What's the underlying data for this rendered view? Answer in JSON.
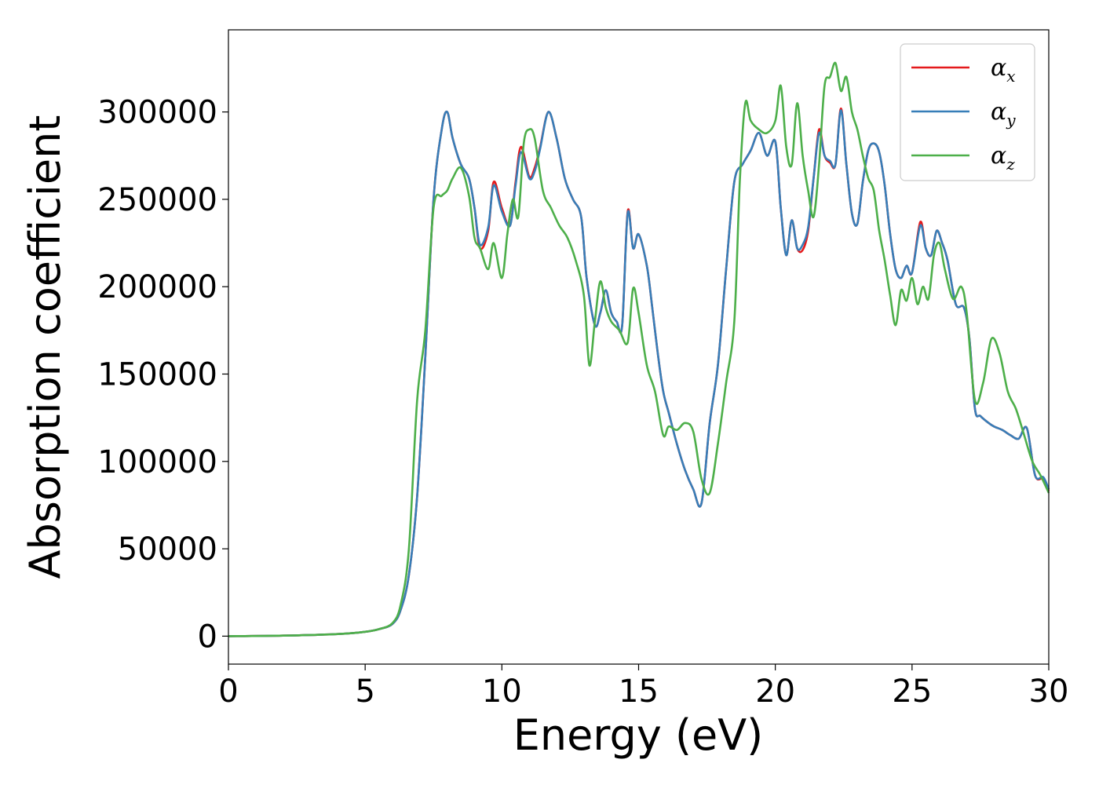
{
  "chart_data": {
    "type": "line",
    "xlabel": "Energy (eV)",
    "ylabel": "Absorption coefficient",
    "xlim": [
      0,
      30
    ],
    "ylim": [
      -16000,
      347000
    ],
    "xticks": [
      0,
      5,
      10,
      15,
      20,
      25,
      30
    ],
    "yticks": [
      0,
      50000,
      100000,
      150000,
      200000,
      250000,
      300000
    ],
    "xtick_labels": [
      "0",
      "5",
      "10",
      "15",
      "20",
      "25",
      "30"
    ],
    "ytick_labels": [
      "0",
      "50000",
      "100000",
      "150000",
      "200000",
      "250000",
      "300000"
    ],
    "grid": false,
    "legend_position": "top-right",
    "series": [
      {
        "name": "αx",
        "legend_symbol": "α",
        "legend_subscript": "x",
        "color": "#e41a1c",
        "x": [
          0,
          2,
          4,
          5,
          5.5,
          6,
          6.3,
          6.6,
          6.9,
          7.2,
          7.5,
          7.8,
          8.0,
          8.2,
          8.5,
          8.8,
          9.0,
          9.2,
          9.5,
          9.7,
          10.0,
          10.3,
          10.5,
          10.7,
          11.0,
          11.2,
          11.4,
          11.7,
          12.0,
          12.3,
          12.6,
          12.9,
          13.1,
          13.4,
          13.6,
          13.8,
          14.0,
          14.2,
          14.4,
          14.6,
          14.8,
          15.0,
          15.3,
          15.5,
          15.7,
          15.9,
          16.1,
          16.4,
          16.7,
          17.0,
          17.3,
          17.6,
          17.9,
          18.2,
          18.5,
          18.8,
          19.1,
          19.4,
          19.7,
          20.0,
          20.2,
          20.4,
          20.6,
          20.8,
          21.0,
          21.2,
          21.4,
          21.6,
          21.8,
          22.0,
          22.2,
          22.4,
          22.6,
          22.8,
          23.0,
          23.2,
          23.4,
          23.6,
          23.8,
          24.0,
          24.2,
          24.4,
          24.6,
          24.8,
          25.0,
          25.3,
          25.5,
          25.7,
          25.9,
          26.1,
          26.3,
          26.6,
          26.9,
          27.1,
          27.3,
          27.5,
          27.8,
          28.0,
          28.3,
          28.6,
          28.9,
          29.2,
          29.5,
          29.8,
          30.0
        ],
        "values": [
          0,
          300,
          1200,
          2500,
          4000,
          7000,
          15000,
          35000,
          80000,
          160000,
          250000,
          290000,
          300000,
          285000,
          270000,
          262000,
          245000,
          222000,
          232000,
          260000,
          245000,
          235000,
          260000,
          280000,
          263000,
          268000,
          280000,
          300000,
          285000,
          262000,
          250000,
          240000,
          205000,
          178000,
          185000,
          198000,
          185000,
          180000,
          178000,
          243000,
          222000,
          230000,
          212000,
          188000,
          162000,
          140000,
          128000,
          110000,
          95000,
          84000,
          76000,
          122000,
          155000,
          210000,
          260000,
          270000,
          278000,
          288000,
          275000,
          283000,
          245000,
          218000,
          238000,
          222000,
          221000,
          232000,
          262000,
          290000,
          275000,
          271000,
          270000,
          302000,
          270000,
          242000,
          236000,
          260000,
          278000,
          282000,
          277000,
          258000,
          230000,
          210000,
          205000,
          212000,
          208000,
          237000,
          222000,
          218000,
          232000,
          225000,
          215000,
          190000,
          188000,
          170000,
          130000,
          126000,
          122000,
          120000,
          118000,
          115000,
          113000,
          119000,
          92000,
          90000,
          83000
        ]
      },
      {
        "name": "αy",
        "legend_symbol": "α",
        "legend_subscript": "y",
        "color": "#377eb8",
        "x": [
          0,
          2,
          4,
          5,
          5.5,
          6,
          6.3,
          6.6,
          6.9,
          7.2,
          7.5,
          7.8,
          8.0,
          8.2,
          8.5,
          8.8,
          9.0,
          9.2,
          9.5,
          9.7,
          10.0,
          10.3,
          10.5,
          10.7,
          11.0,
          11.2,
          11.4,
          11.7,
          12.0,
          12.3,
          12.6,
          12.9,
          13.1,
          13.4,
          13.6,
          13.8,
          14.0,
          14.2,
          14.4,
          14.6,
          14.8,
          15.0,
          15.3,
          15.5,
          15.7,
          15.9,
          16.1,
          16.4,
          16.7,
          17.0,
          17.3,
          17.6,
          17.9,
          18.2,
          18.5,
          18.8,
          19.1,
          19.4,
          19.7,
          20.0,
          20.2,
          20.4,
          20.6,
          20.8,
          21.0,
          21.2,
          21.4,
          21.6,
          21.8,
          22.0,
          22.2,
          22.4,
          22.6,
          22.8,
          23.0,
          23.2,
          23.4,
          23.6,
          23.8,
          24.0,
          24.2,
          24.4,
          24.6,
          24.8,
          25.0,
          25.3,
          25.5,
          25.7,
          25.9,
          26.1,
          26.3,
          26.6,
          26.9,
          27.1,
          27.3,
          27.5,
          27.8,
          28.0,
          28.3,
          28.6,
          28.9,
          29.2,
          29.5,
          29.8,
          30.0
        ],
        "values": [
          0,
          300,
          1200,
          2500,
          4000,
          7000,
          15000,
          35000,
          80000,
          160000,
          250000,
          290000,
          300000,
          285000,
          270000,
          262000,
          245000,
          224000,
          234000,
          258000,
          243000,
          235000,
          258000,
          277000,
          262000,
          266000,
          279000,
          300000,
          285000,
          262000,
          250000,
          240000,
          205000,
          178000,
          185000,
          198000,
          185000,
          180000,
          178000,
          242000,
          222000,
          230000,
          212000,
          188000,
          162000,
          140000,
          128000,
          110000,
          95000,
          84000,
          76000,
          122000,
          155000,
          210000,
          260000,
          270000,
          278000,
          288000,
          275000,
          283000,
          245000,
          218000,
          238000,
          222000,
          224000,
          234000,
          262000,
          288000,
          275000,
          272000,
          270000,
          301000,
          270000,
          242000,
          236000,
          260000,
          278000,
          282000,
          277000,
          258000,
          230000,
          210000,
          205000,
          212000,
          208000,
          235000,
          222000,
          218000,
          232000,
          225000,
          215000,
          190000,
          188000,
          170000,
          130000,
          126000,
          122000,
          120000,
          118000,
          115000,
          113000,
          119000,
          92000,
          91000,
          84000
        ]
      },
      {
        "name": "αz",
        "legend_symbol": "α",
        "legend_subscript": "z",
        "color": "#4daf4a",
        "x": [
          0,
          2,
          4,
          5,
          5.5,
          6,
          6.3,
          6.6,
          6.9,
          7.2,
          7.5,
          7.8,
          8.0,
          8.2,
          8.5,
          8.8,
          9.0,
          9.2,
          9.5,
          9.7,
          10.0,
          10.2,
          10.4,
          10.6,
          10.8,
          11.0,
          11.2,
          11.5,
          11.8,
          12.1,
          12.4,
          12.7,
          13.0,
          13.2,
          13.4,
          13.6,
          13.8,
          14.0,
          14.3,
          14.6,
          14.8,
          15.0,
          15.3,
          15.6,
          15.9,
          16.1,
          16.4,
          16.7,
          17.0,
          17.3,
          17.6,
          17.9,
          18.2,
          18.5,
          18.7,
          18.9,
          19.1,
          19.4,
          19.7,
          20.0,
          20.2,
          20.4,
          20.6,
          20.8,
          21.0,
          21.2,
          21.4,
          21.6,
          21.8,
          22.0,
          22.2,
          22.4,
          22.6,
          22.8,
          23.0,
          23.2,
          23.4,
          23.6,
          23.8,
          24.0,
          24.2,
          24.4,
          24.6,
          24.8,
          25.0,
          25.2,
          25.4,
          25.6,
          25.8,
          26.0,
          26.2,
          26.5,
          26.8,
          27.0,
          27.3,
          27.6,
          27.9,
          28.2,
          28.5,
          28.8,
          29.1,
          29.4,
          29.7,
          30.0
        ],
        "values": [
          0,
          300,
          1200,
          2500,
          4000,
          7500,
          18000,
          50000,
          135000,
          175000,
          245000,
          252000,
          255000,
          262000,
          268000,
          252000,
          228000,
          222000,
          210000,
          225000,
          205000,
          230000,
          250000,
          240000,
          282000,
          290000,
          285000,
          255000,
          245000,
          235000,
          228000,
          215000,
          195000,
          155000,
          180000,
          203000,
          188000,
          180000,
          175000,
          168000,
          199000,
          185000,
          155000,
          140000,
          115000,
          120000,
          118000,
          122000,
          117000,
          90000,
          82000,
          110000,
          145000,
          180000,
          260000,
          305000,
          295000,
          290000,
          288000,
          295000,
          315000,
          280000,
          270000,
          305000,
          275000,
          255000,
          240000,
          270000,
          315000,
          320000,
          328000,
          312000,
          320000,
          300000,
          290000,
          275000,
          262000,
          255000,
          232000,
          215000,
          195000,
          178000,
          198000,
          192000,
          205000,
          190000,
          200000,
          193000,
          218000,
          225000,
          210000,
          193000,
          200000,
          185000,
          135000,
          145000,
          170000,
          162000,
          140000,
          130000,
          115000,
          100000,
          92000,
          82000
        ]
      }
    ]
  }
}
